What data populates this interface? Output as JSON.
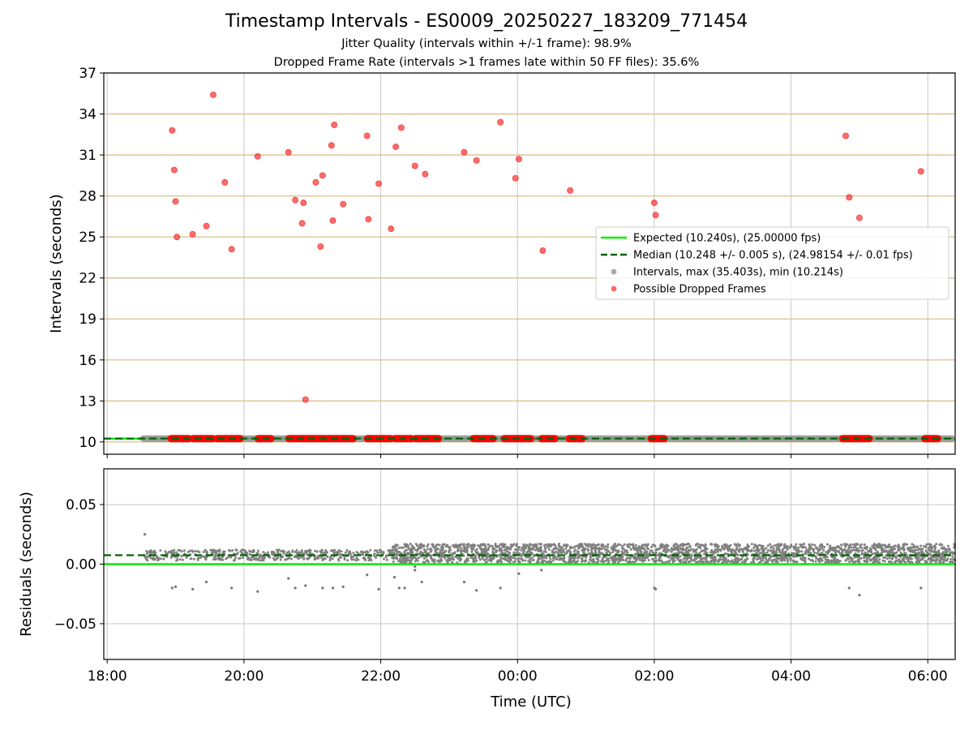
{
  "figure": {
    "title": "Timestamp Intervals - ES0009_20250227_183209_771454",
    "subtitle1": "Jitter Quality (intervals within +/-1 frame): 98.9%",
    "subtitle2": "Dropped Frame Rate (intervals >1 frames late within 50 FF files): 35.6%"
  },
  "colors": {
    "expected": "#00ee00",
    "median": "#006400",
    "intervals": "#808080",
    "dropped": "#ff0000",
    "hgrid_top": "#d9c08a",
    "grid": "#c8c8c8"
  },
  "chart_data": [
    {
      "type": "scatter",
      "panel": "top",
      "ylabel": "Intervals (seconds)",
      "xlabel": "",
      "x_units": "hours after 18:00 UTC",
      "xlim": [
        -0.05,
        12.4
      ],
      "ylim": [
        9.1,
        37.0
      ],
      "yticks": [
        10,
        13,
        16,
        19,
        22,
        25,
        28,
        31,
        34,
        37
      ],
      "grid": "horizontal",
      "legend_position": "center-right",
      "legend": [
        {
          "label": "Expected (10.240s), (25.00000 fps)",
          "kind": "line",
          "color": "#00ee00"
        },
        {
          "label": "Median (10.248 +/- 0.005 s), (24.98154 +/- 0.01 fps)",
          "kind": "dashed",
          "color": "#006400"
        },
        {
          "label": "Intervals, max (35.403s), min (10.214s)",
          "kind": "dot",
          "color": "#a0a0a0"
        },
        {
          "label": "Possible Dropped Frames",
          "kind": "dot",
          "color": "#ff5555"
        }
      ],
      "expected_interval": 10.24,
      "median_interval": 10.248,
      "interval_series": {
        "name": "Intervals",
        "x_start": 0.53,
        "x_end": 12.4,
        "y": 10.24
      },
      "dropped_frame_bands": [
        [
          0.93,
          1.2
        ],
        [
          1.25,
          1.55
        ],
        [
          1.6,
          1.95
        ],
        [
          2.2,
          2.4
        ],
        [
          2.65,
          3.6
        ],
        [
          3.8,
          4.15
        ],
        [
          4.2,
          4.45
        ],
        [
          4.5,
          4.85
        ],
        [
          5.35,
          5.65
        ],
        [
          5.8,
          6.05
        ],
        [
          6.05,
          6.2
        ],
        [
          6.35,
          6.55
        ],
        [
          6.75,
          6.95
        ],
        [
          7.95,
          8.15
        ],
        [
          10.75,
          11.15
        ],
        [
          11.95,
          12.15
        ]
      ],
      "dropped_frames": [
        [
          0.95,
          32.8
        ],
        [
          0.98,
          29.9
        ],
        [
          1.0,
          27.6
        ],
        [
          1.02,
          25.0
        ],
        [
          1.25,
          25.2
        ],
        [
          1.45,
          25.8
        ],
        [
          1.55,
          35.4
        ],
        [
          1.72,
          29.0
        ],
        [
          1.82,
          24.1
        ],
        [
          2.2,
          30.9
        ],
        [
          2.65,
          31.2
        ],
        [
          2.75,
          27.7
        ],
        [
          2.85,
          26.0
        ],
        [
          2.87,
          27.5
        ],
        [
          2.9,
          13.1
        ],
        [
          3.05,
          29.0
        ],
        [
          3.12,
          24.3
        ],
        [
          3.15,
          29.5
        ],
        [
          3.28,
          31.7
        ],
        [
          3.3,
          26.2
        ],
        [
          3.32,
          33.2
        ],
        [
          3.45,
          27.4
        ],
        [
          3.8,
          32.4
        ],
        [
          3.82,
          26.3
        ],
        [
          3.97,
          28.9
        ],
        [
          4.15,
          25.6
        ],
        [
          4.22,
          31.6
        ],
        [
          4.3,
          33.0
        ],
        [
          4.5,
          30.2
        ],
        [
          4.65,
          29.6
        ],
        [
          5.22,
          31.2
        ],
        [
          5.4,
          30.6
        ],
        [
          5.75,
          33.4
        ],
        [
          5.97,
          29.3
        ],
        [
          6.02,
          30.7
        ],
        [
          6.37,
          24.0
        ],
        [
          6.77,
          28.4
        ],
        [
          8.0,
          27.5
        ],
        [
          8.02,
          26.6
        ],
        [
          10.8,
          32.4
        ],
        [
          10.85,
          27.9
        ],
        [
          11.0,
          26.4
        ],
        [
          11.9,
          29.8
        ]
      ]
    },
    {
      "type": "scatter",
      "panel": "bottom",
      "xlabel": "Time (UTC)",
      "ylabel": "Residuals (seconds)",
      "x_units": "hours after 18:00 UTC",
      "xlim": [
        -0.05,
        12.4
      ],
      "ylim": [
        -0.08,
        0.08
      ],
      "yticks": [
        0.05,
        0.0,
        -0.05
      ],
      "ytick_labels": [
        "0.05",
        "0.00",
        "−0.05"
      ],
      "xticks": [
        0,
        2,
        4,
        6,
        8,
        10,
        12
      ],
      "xtick_labels": [
        "18:00",
        "20:00",
        "22:00",
        "00:00",
        "02:00",
        "04:00",
        "06:00"
      ],
      "grid": "both",
      "expected_residual": 0.0,
      "median_residual": 0.0075,
      "regime_change_x": 4.15,
      "early_band": [
        0.003,
        0.012
      ],
      "late_band": [
        0.001,
        0.017
      ],
      "outliers": [
        [
          0.55,
          0.025
        ],
        [
          0.95,
          -0.02
        ],
        [
          1.0,
          -0.019
        ],
        [
          1.25,
          -0.021
        ],
        [
          1.45,
          -0.015
        ],
        [
          1.82,
          -0.02
        ],
        [
          2.2,
          -0.023
        ],
        [
          2.65,
          -0.012
        ],
        [
          2.75,
          -0.02
        ],
        [
          2.9,
          -0.018
        ],
        [
          3.15,
          -0.02
        ],
        [
          3.3,
          -0.02
        ],
        [
          3.45,
          -0.019
        ],
        [
          3.8,
          -0.009
        ],
        [
          3.97,
          -0.021
        ],
        [
          4.2,
          -0.011
        ],
        [
          4.27,
          -0.02
        ],
        [
          4.35,
          -0.02
        ],
        [
          4.5,
          -0.005
        ],
        [
          4.5,
          -0.002
        ],
        [
          4.6,
          -0.015
        ],
        [
          5.22,
          -0.015
        ],
        [
          5.4,
          -0.022
        ],
        [
          5.75,
          -0.02
        ],
        [
          6.02,
          -0.008
        ],
        [
          6.35,
          -0.005
        ],
        [
          8.0,
          -0.02
        ],
        [
          8.02,
          -0.021
        ],
        [
          10.85,
          -0.02
        ],
        [
          11.0,
          -0.026
        ],
        [
          11.9,
          -0.02
        ]
      ]
    }
  ]
}
